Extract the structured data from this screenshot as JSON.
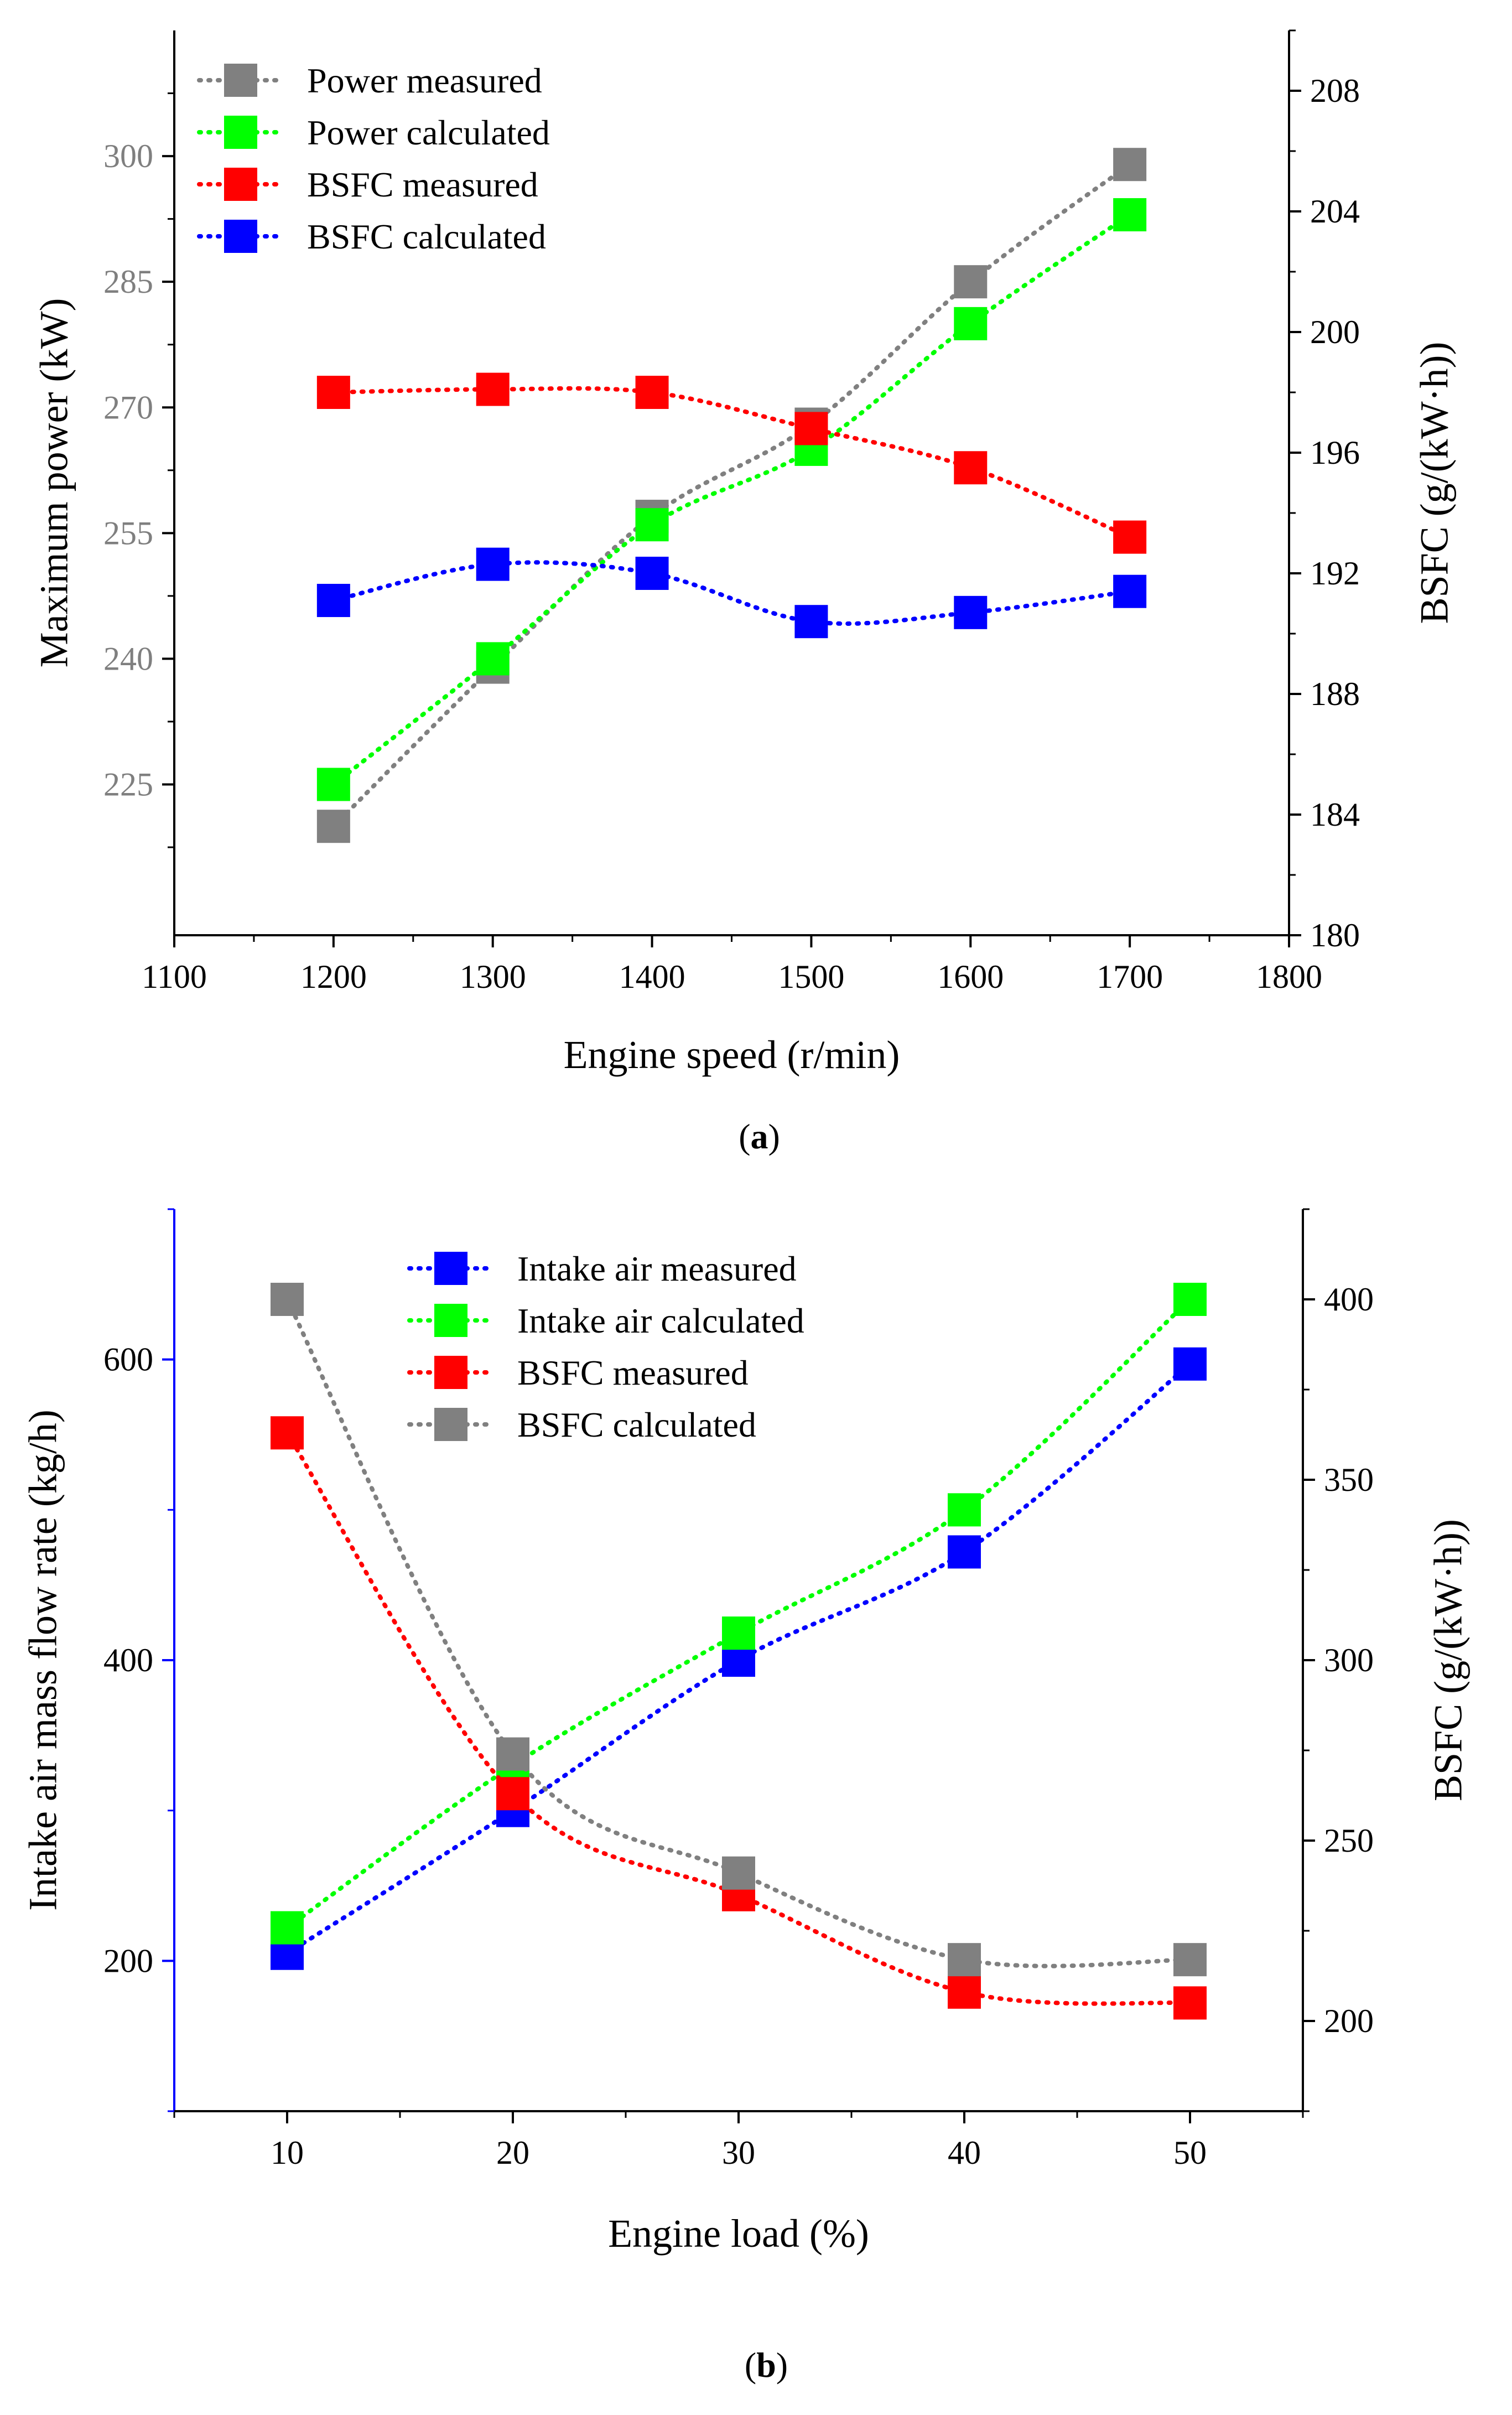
{
  "colors": {
    "gray": "#808080",
    "green": "#00ff00",
    "red": "#ff0000",
    "blue": "#0000ff",
    "axis": "#000000",
    "tickGray": "#7f7f7f"
  },
  "chart_data": [
    {
      "type": "scatter",
      "panel_label": "a",
      "xlabel": "Engine speed (r/min)",
      "ylabel_left": "Maximum power (kW)",
      "ylabel_right": "BSFC (g/(kW·h))",
      "xlim": [
        1100,
        1800
      ],
      "ylim_left": [
        207,
        315
      ],
      "ylim_right": [
        180,
        210
      ],
      "x_ticks": [
        1100,
        1200,
        1300,
        1400,
        1500,
        1600,
        1700,
        1800
      ],
      "y_ticks_left": [
        225,
        240,
        255,
        270,
        285,
        300
      ],
      "y_ticks_right": [
        180,
        184,
        188,
        192,
        196,
        200,
        204,
        208
      ],
      "legend_position": "top-left",
      "series": [
        {
          "name": "Power measured",
          "axis": "left",
          "color": "#808080",
          "x": [
            1200,
            1300,
            1400,
            1500,
            1600,
            1700
          ],
          "values": [
            220,
            239,
            257,
            268,
            285,
            299
          ]
        },
        {
          "name": "Power calculated",
          "axis": "left",
          "color": "#00ff00",
          "x": [
            1200,
            1300,
            1400,
            1500,
            1600,
            1700
          ],
          "values": [
            225,
            240,
            256,
            265,
            280,
            293
          ]
        },
        {
          "name": "BSFC measured",
          "axis": "right",
          "color": "#ff0000",
          "x": [
            1200,
            1300,
            1400,
            1500,
            1600,
            1700
          ],
          "values": [
            198.0,
            198.1,
            198.0,
            196.8,
            195.5,
            193.2
          ]
        },
        {
          "name": "BSFC calculated",
          "axis": "right",
          "color": "#0000ff",
          "x": [
            1200,
            1300,
            1400,
            1500,
            1600,
            1700
          ],
          "values": [
            191.1,
            192.3,
            192.0,
            190.4,
            190.7,
            191.4
          ]
        }
      ]
    },
    {
      "type": "scatter",
      "panel_label": "b",
      "xlabel": "Engine load (%)",
      "ylabel_left": "Intake air mass flow rate (kg/h)",
      "ylabel_right": "BSFC (g/(kW·h))",
      "xlim": [
        5,
        55
      ],
      "ylim_left": [
        100,
        700
      ],
      "ylim_right": [
        175,
        425
      ],
      "x_ticks": [
        10,
        20,
        30,
        40,
        50
      ],
      "x_minor_ticks": [
        5,
        15,
        25,
        35,
        45,
        55
      ],
      "y_ticks_left": [
        200,
        400,
        600
      ],
      "y_ticks_right": [
        200,
        250,
        300,
        350,
        400
      ],
      "legend_position": "top-center",
      "series": [
        {
          "name": "Intake air measured",
          "axis": "left",
          "color": "#0000ff",
          "x": [
            10,
            20,
            30,
            40,
            50
          ],
          "values": [
            205,
            300,
            400,
            472,
            597
          ]
        },
        {
          "name": "Intake air calculated",
          "axis": "left",
          "color": "#00ff00",
          "x": [
            10,
            20,
            30,
            40,
            50
          ],
          "values": [
            222,
            330,
            418,
            500,
            640
          ]
        },
        {
          "name": "BSFC measured",
          "axis": "right",
          "color": "#ff0000",
          "x": [
            10,
            20,
            30,
            40,
            50
          ],
          "values": [
            363,
            263,
            235,
            208,
            205
          ]
        },
        {
          "name": "BSFC calculated",
          "axis": "right",
          "color": "#808080",
          "x": [
            10,
            20,
            30,
            40,
            50
          ],
          "values": [
            400,
            274,
            241,
            217,
            217
          ]
        }
      ]
    }
  ]
}
